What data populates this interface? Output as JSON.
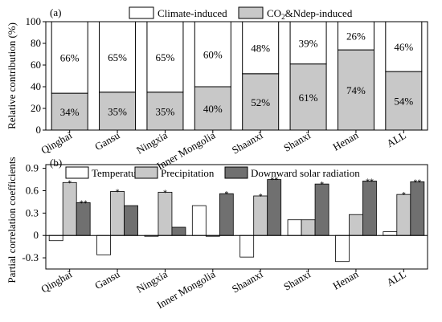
{
  "chart_data": [
    {
      "type": "bar",
      "panel_label": "(a)",
      "stacked": true,
      "ylabel": "Relative contribution (%)",
      "ylim": [
        0,
        100
      ],
      "yticks": [
        "0",
        "20",
        "40",
        "60",
        "80",
        "100"
      ],
      "yticks_values": [
        0,
        20,
        40,
        60,
        80,
        100
      ],
      "categories": [
        "Qinghai",
        "Gansu",
        "Ningxia",
        "Inner Mongolia",
        "Shaanxi",
        "Shanxi",
        "Henan",
        "ALL"
      ],
      "legend": {
        "placement": "top",
        "climate_label": "Climate-induced",
        "co2_main": "CO",
        "co2_sub": "2",
        "co2_rest": "&Ndep-induced"
      },
      "colors": {
        "climate": "#ffffff",
        "co2": "#c8c8c8",
        "border": "#000000"
      },
      "series": [
        {
          "key": "co2",
          "values": [
            34,
            35,
            35,
            40,
            52,
            61,
            74,
            54
          ],
          "labels": [
            "34%",
            "35%",
            "35%",
            "40%",
            "52%",
            "61%",
            "74%",
            "54%"
          ]
        },
        {
          "key": "climate",
          "values": [
            66,
            65,
            65,
            60,
            48,
            39,
            26,
            46
          ],
          "labels": [
            "66%",
            "65%",
            "65%",
            "60%",
            "48%",
            "39%",
            "26%",
            "46%"
          ]
        }
      ]
    },
    {
      "type": "bar",
      "panel_label": "(b)",
      "ylabel": "Partial correlation coefficients",
      "ylim": [
        -0.45,
        0.95
      ],
      "yticks": [
        "-0.3",
        "0",
        "0.3",
        "0.6",
        "0.9"
      ],
      "yticks_values": [
        -0.3,
        0,
        0.3,
        0.6,
        0.9
      ],
      "categories": [
        "Qinghai",
        "Gansu",
        "Ningxia",
        "Inner Mongolia",
        "Shaanxi",
        "Shanxi",
        "Henan",
        "ALL"
      ],
      "legend": {
        "placement": "top"
      },
      "series": [
        {
          "name": "Temperature",
          "color": "#ffffff",
          "values": [
            -0.07,
            -0.26,
            -0.01,
            0.4,
            -0.29,
            0.21,
            -0.35,
            0.05
          ],
          "marks": [
            "",
            "",
            "",
            "",
            "",
            "",
            "",
            ""
          ]
        },
        {
          "name": "Precipitation",
          "color": "#c8c8c8",
          "values": [
            0.71,
            0.59,
            0.58,
            -0.01,
            0.53,
            0.21,
            0.28,
            0.55
          ],
          "marks": [
            "*",
            "*",
            "*",
            "",
            "*",
            "",
            "",
            "*"
          ]
        },
        {
          "name": "Downward solar radiation",
          "color": "#707070",
          "values": [
            0.44,
            0.4,
            0.11,
            0.56,
            0.75,
            0.69,
            0.73,
            0.72
          ],
          "marks": [
            "**",
            "",
            "",
            "*",
            "**",
            "*",
            "**",
            "**"
          ]
        }
      ]
    }
  ]
}
